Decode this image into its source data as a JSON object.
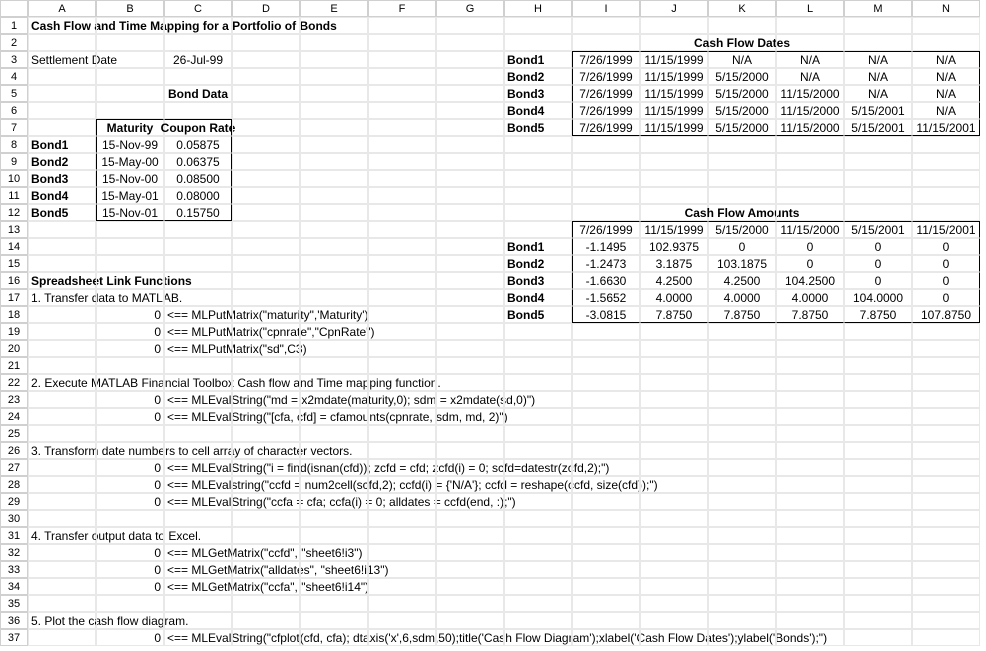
{
  "columns": [
    "A",
    "B",
    "C",
    "D",
    "E",
    "F",
    "G",
    "H",
    "I",
    "J",
    "K",
    "L",
    "M",
    "N"
  ],
  "rows": 37,
  "title": "Cash Flow and Time Mapping for a Portfolio of Bonds",
  "settlement_label": "Settlement Date",
  "settlement_date": "26-Jul-99",
  "bond_data_label": "Bond Data",
  "maturity_hdr": "Maturity",
  "coupon_hdr": "Coupon Rate",
  "bonds": [
    {
      "name": "Bond1",
      "maturity": "15-Nov-99",
      "coupon": "0.05875"
    },
    {
      "name": "Bond2",
      "maturity": "15-May-00",
      "coupon": "0.06375"
    },
    {
      "name": "Bond3",
      "maturity": "15-Nov-00",
      "coupon": "0.08500"
    },
    {
      "name": "Bond4",
      "maturity": "15-May-01",
      "coupon": "0.08000"
    },
    {
      "name": "Bond5",
      "maturity": "15-Nov-01",
      "coupon": "0.15750"
    }
  ],
  "cf_dates_title": "Cash Flow Dates",
  "cf_dates": {
    "Bond1": [
      "7/26/1999",
      "11/15/1999",
      "N/A",
      "N/A",
      "N/A",
      "N/A"
    ],
    "Bond2": [
      "7/26/1999",
      "11/15/1999",
      "5/15/2000",
      "N/A",
      "N/A",
      "N/A"
    ],
    "Bond3": [
      "7/26/1999",
      "11/15/1999",
      "5/15/2000",
      "11/15/2000",
      "N/A",
      "N/A"
    ],
    "Bond4": [
      "7/26/1999",
      "11/15/1999",
      "5/15/2000",
      "11/15/2000",
      "5/15/2001",
      "N/A"
    ],
    "Bond5": [
      "7/26/1999",
      "11/15/1999",
      "5/15/2000",
      "11/15/2000",
      "5/15/2001",
      "11/15/2001"
    ]
  },
  "cf_amounts_title": "Cash Flow Amounts",
  "cf_amounts_hdr": [
    "7/26/1999",
    "11/15/1999",
    "5/15/2000",
    "11/15/2000",
    "5/15/2001",
    "11/15/2001"
  ],
  "cf_amounts": {
    "Bond1": [
      "-1.1495",
      "102.9375",
      "0",
      "0",
      "0",
      "0"
    ],
    "Bond2": [
      "-1.2473",
      "3.1875",
      "103.1875",
      "0",
      "0",
      "0"
    ],
    "Bond3": [
      "-1.6630",
      "4.2500",
      "4.2500",
      "104.2500",
      "0",
      "0"
    ],
    "Bond4": [
      "-1.5652",
      "4.0000",
      "4.0000",
      "4.0000",
      "104.0000",
      "0"
    ],
    "Bond5": [
      "-3.0815",
      "7.8750",
      "7.8750",
      "7.8750",
      "7.8750",
      "107.8750"
    ]
  },
  "slf_title": "Spreadsheet Link Functions",
  "steps": {
    "s1": "1. Transfer data to MATLAB.",
    "s1_lines": [
      {
        "z": "0",
        "arr": "<== MLPutMatrix(\"maturity\",'Maturity')"
      },
      {
        "z": "0",
        "arr": "<== MLPutMatrix(\"cpnrate\",\"CpnRate\")"
      },
      {
        "z": "0",
        "arr": "<== MLPutMatrix(\"sd\",C3)"
      }
    ],
    "s2": "2.  Execute MATLAB Financial Toolbox Cash flow and Time mapping function.",
    "s2_lines": [
      {
        "z": "0",
        "arr": "<== MLEvalString(\"md = x2mdate(maturity,0); sdm = x2mdate(sd,0)\")"
      },
      {
        "z": "0",
        "arr": "<== MLEvalString(\"[cfa, cfd] = cfamounts(cpnrate, sdm, md, 2)\")"
      }
    ],
    "s3": "3. Transform date numbers to cell array of character vectors.",
    "s3_lines": [
      {
        "z": "0",
        "arr": "<== MLEvalString(\"i = find(isnan(cfd)); zcfd = cfd; zcfd(i) = 0; scfd=datestr(zcfd,2);\")"
      },
      {
        "z": "0",
        "arr": "<== MLEvalstring(\"ccfd = num2cell(scfd,2); ccfd(i) = {'N/A'}; ccfd = reshape(ccfd, size(cfd));\")"
      },
      {
        "z": "0",
        "arr": "<== MLEvalString(\"ccfa = cfa; ccfa(i) = 0; alldates = ccfd(end, :);\")"
      }
    ],
    "s4": "4.  Transfer output data to Excel.",
    "s4_lines": [
      {
        "z": "0",
        "arr": "<== MLGetMatrix(\"ccfd\", \"sheet6!i3\")"
      },
      {
        "z": "0",
        "arr": "<== MLGetMatrix(\"alldates\", \"sheet6!i13\")"
      },
      {
        "z": "0",
        "arr": "<== MLGetMatrix(\"ccfa\", \"sheet6!i14\")"
      }
    ],
    "s5": "5. Plot the cash flow diagram.",
    "s5_lines": [
      {
        "z": "0",
        "arr": "<== MLEvalString(\"cfplot(cfd, cfa); dtaxis('x',6,sdm,50);title('Cash Flow Diagram');xlabel('Cash Flow Dates');ylabel('Bonds');\")"
      }
    ]
  }
}
